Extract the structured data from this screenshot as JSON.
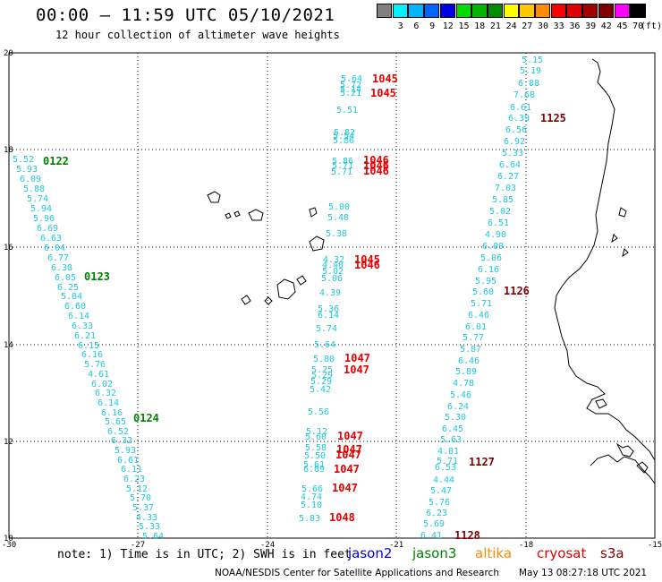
{
  "title": "00:00 – 11:59 UTC 05/10/2021",
  "subtitle": "12 hour collection of altimeter wave heights",
  "color_scale": {
    "unit_label": "(ft)",
    "items": [
      {
        "label": "",
        "color": "#808080"
      },
      {
        "label": "3",
        "color": "#00f0ff"
      },
      {
        "label": "6",
        "color": "#00b4ff"
      },
      {
        "label": "9",
        "color": "#0064ff"
      },
      {
        "label": "12",
        "color": "#0000e6"
      },
      {
        "label": "15",
        "color": "#00dc00"
      },
      {
        "label": "18",
        "color": "#00b400"
      },
      {
        "label": "21",
        "color": "#008c00"
      },
      {
        "label": "24",
        "color": "#ffff00"
      },
      {
        "label": "27",
        "color": "#ffc800"
      },
      {
        "label": "30",
        "color": "#ff8c00"
      },
      {
        "label": "33",
        "color": "#ff0000"
      },
      {
        "label": "36",
        "color": "#dc0000"
      },
      {
        "label": "39",
        "color": "#a00000"
      },
      {
        "label": "42",
        "color": "#800000"
      },
      {
        "label": "45",
        "color": "#ff00ff"
      },
      {
        "label": "70",
        "color": "#000000"
      }
    ]
  },
  "axes": {
    "lon_labels": [
      "-30",
      "-27",
      "-24",
      "-21",
      "-18",
      "-15"
    ],
    "lat_labels": [
      "20",
      "18",
      "16",
      "14",
      "12",
      "10"
    ]
  },
  "colors": {
    "wave_value": "#1ec8dc",
    "jason3": "#008000",
    "cryosat": "#e60000",
    "s3a": "#800000",
    "grid": "#000000",
    "coast": "#000000"
  },
  "tracks": [
    {
      "id": "track-0122",
      "time_labels": [
        {
          "text": "0122",
          "color": "jason3",
          "pos": [
            48,
            184
          ]
        },
        {
          "text": "0123",
          "color": "jason3",
          "pos": [
            94,
            313
          ]
        },
        {
          "text": "0124",
          "color": "jason3",
          "pos": [
            149,
            471
          ]
        }
      ],
      "values": [
        {
          "text": "5.52",
          "pos": [
            14,
            181
          ]
        },
        {
          "text": "5.93",
          "pos": [
            18,
            192
          ]
        },
        {
          "text": "6.09",
          "pos": [
            22,
            203
          ]
        },
        {
          "text": "5.88",
          "pos": [
            26,
            214
          ]
        },
        {
          "text": "5.74",
          "pos": [
            30,
            225
          ]
        },
        {
          "text": "5.94",
          "pos": [
            34,
            236
          ]
        },
        {
          "text": "5.96",
          "pos": [
            37,
            247
          ]
        },
        {
          "text": "6.69",
          "pos": [
            41,
            258
          ]
        },
        {
          "text": "6.63",
          "pos": [
            45,
            269
          ]
        },
        {
          "text": "6.04",
          "pos": [
            49,
            280
          ]
        },
        {
          "text": "6.77",
          "pos": [
            53,
            291
          ]
        },
        {
          "text": "6.38",
          "pos": [
            57,
            302
          ]
        },
        {
          "text": "6.05",
          "pos": [
            61,
            313
          ]
        },
        {
          "text": "6.25",
          "pos": [
            64,
            324
          ]
        },
        {
          "text": "5.84",
          "pos": [
            68,
            334
          ]
        },
        {
          "text": "6.60",
          "pos": [
            72,
            345
          ]
        },
        {
          "text": "6.14",
          "pos": [
            76,
            356
          ]
        },
        {
          "text": "6.33",
          "pos": [
            80,
            367
          ]
        },
        {
          "text": "6.21",
          "pos": [
            83,
            378
          ]
        },
        {
          "text": "6.15",
          "pos": [
            87,
            389
          ]
        },
        {
          "text": "6.16",
          "pos": [
            91,
            399
          ]
        },
        {
          "text": "5.76",
          "pos": [
            94,
            410
          ]
        },
        {
          "text": "4.61",
          "pos": [
            98,
            421
          ]
        },
        {
          "text": "6.02",
          "pos": [
            102,
            432
          ]
        },
        {
          "text": "6.32",
          "pos": [
            106,
            442
          ]
        },
        {
          "text": "6.14",
          "pos": [
            109,
            453
          ]
        },
        {
          "text": "6.16",
          "pos": [
            113,
            464
          ]
        },
        {
          "text": "5.65",
          "pos": [
            117,
            474
          ]
        },
        {
          "text": "6.52",
          "pos": [
            120,
            485
          ]
        },
        {
          "text": "6.32",
          "pos": [
            124,
            495
          ]
        },
        {
          "text": "5.93",
          "pos": [
            128,
            506
          ]
        },
        {
          "text": "6.61",
          "pos": [
            131,
            517
          ]
        },
        {
          "text": "6.11",
          "pos": [
            135,
            527
          ]
        },
        {
          "text": "6.23",
          "pos": [
            138,
            538
          ]
        },
        {
          "text": "5.12",
          "pos": [
            141,
            549
          ]
        },
        {
          "text": "5.70",
          "pos": [
            145,
            559
          ]
        },
        {
          "text": "5.37",
          "pos": [
            148,
            570
          ]
        },
        {
          "text": "4.33",
          "pos": [
            152,
            581
          ]
        },
        {
          "text": "5.33",
          "pos": [
            155,
            591
          ]
        },
        {
          "text": "5.64",
          "pos": [
            159,
            602
          ]
        }
      ]
    },
    {
      "id": "track-cryosat",
      "time_labels": [
        {
          "text": "1045",
          "color": "cryosat",
          "pos": [
            416,
            92
          ]
        },
        {
          "text": "1045",
          "color": "cryosat",
          "pos": [
            414,
            108
          ]
        },
        {
          "text": "1046",
          "color": "cryosat",
          "pos": [
            406,
            183
          ]
        },
        {
          "text": "1046",
          "color": "cryosat",
          "pos": [
            406,
            189
          ]
        },
        {
          "text": "1046",
          "color": "cryosat",
          "pos": [
            406,
            195
          ]
        },
        {
          "text": "1045",
          "color": "cryosat",
          "pos": [
            396,
            294
          ]
        },
        {
          "text": "1046",
          "color": "cryosat",
          "pos": [
            396,
            300
          ]
        },
        {
          "text": "1047",
          "color": "cryosat",
          "pos": [
            385,
            404
          ]
        },
        {
          "text": "1047",
          "color": "cryosat",
          "pos": [
            384,
            417
          ]
        },
        {
          "text": "1047",
          "color": "cryosat",
          "pos": [
            377,
            491
          ]
        },
        {
          "text": "1047",
          "color": "cryosat",
          "pos": [
            376,
            506
          ]
        },
        {
          "text": "1047",
          "color": "cryosat",
          "pos": [
            375,
            512
          ]
        },
        {
          "text": "1047",
          "color": "cryosat",
          "pos": [
            373,
            528
          ]
        },
        {
          "text": "1047",
          "color": "cryosat",
          "pos": [
            371,
            549
          ]
        },
        {
          "text": "1048",
          "color": "cryosat",
          "pos": [
            368,
            582
          ]
        }
      ],
      "values": [
        {
          "text": "5.64",
          "pos": [
            381,
            91
          ]
        },
        {
          "text": "5.72",
          "pos": [
            380,
            98
          ]
        },
        {
          "text": "5.14",
          "pos": [
            380,
            103
          ]
        },
        {
          "text": "5.21",
          "pos": [
            380,
            107
          ]
        },
        {
          "text": "5.51",
          "pos": [
            376,
            126
          ]
        },
        {
          "text": "5.82",
          "pos": [
            373,
            151
          ]
        },
        {
          "text": "5.54",
          "pos": [
            372,
            155
          ]
        },
        {
          "text": "5.86",
          "pos": [
            372,
            160
          ]
        },
        {
          "text": "5.86",
          "pos": [
            371,
            183
          ]
        },
        {
          "text": "5.71",
          "pos": [
            371,
            188
          ]
        },
        {
          "text": "5.71",
          "pos": [
            370,
            195
          ]
        },
        {
          "text": "5.00",
          "pos": [
            367,
            234
          ]
        },
        {
          "text": "5.48",
          "pos": [
            366,
            246
          ]
        },
        {
          "text": "5.38",
          "pos": [
            364,
            264
          ]
        },
        {
          "text": "4.32",
          "pos": [
            361,
            293
          ]
        },
        {
          "text": "4.40",
          "pos": [
            360,
            299
          ]
        },
        {
          "text": "5.02",
          "pos": [
            360,
            306
          ]
        },
        {
          "text": "5.06",
          "pos": [
            359,
            314
          ]
        },
        {
          "text": "4.39",
          "pos": [
            357,
            330
          ]
        },
        {
          "text": "5.36",
          "pos": [
            355,
            348
          ]
        },
        {
          "text": "6.14",
          "pos": [
            355,
            355
          ]
        },
        {
          "text": "5.74",
          "pos": [
            353,
            370
          ]
        },
        {
          "text": "5.64",
          "pos": [
            351,
            388
          ]
        },
        {
          "text": "5.80",
          "pos": [
            350,
            404
          ]
        },
        {
          "text": "5.25",
          "pos": [
            348,
            416
          ]
        },
        {
          "text": "5.29",
          "pos": [
            348,
            422
          ]
        },
        {
          "text": "5.29",
          "pos": [
            347,
            429
          ]
        },
        {
          "text": "5.42",
          "pos": [
            346,
            438
          ]
        },
        {
          "text": "5.56",
          "pos": [
            344,
            463
          ]
        },
        {
          "text": "5.12",
          "pos": [
            342,
            485
          ]
        },
        {
          "text": "5.60",
          "pos": [
            341,
            491
          ]
        },
        {
          "text": "5.58",
          "pos": [
            341,
            503
          ]
        },
        {
          "text": "5.50",
          "pos": [
            340,
            512
          ]
        },
        {
          "text": "5.61",
          "pos": [
            339,
            522
          ]
        },
        {
          "text": "6.09",
          "pos": [
            339,
            527
          ]
        },
        {
          "text": "5.66",
          "pos": [
            337,
            549
          ]
        },
        {
          "text": "4.74",
          "pos": [
            336,
            558
          ]
        },
        {
          "text": "5.10",
          "pos": [
            336,
            567
          ]
        },
        {
          "text": "5.83",
          "pos": [
            334,
            582
          ]
        }
      ]
    },
    {
      "id": "track-s3a",
      "time_labels": [
        {
          "text": "1125",
          "color": "s3a",
          "pos": [
            604,
            136
          ]
        },
        {
          "text": "1126",
          "color": "s3a",
          "pos": [
            563,
            329
          ]
        },
        {
          "text": "1127",
          "color": "s3a",
          "pos": [
            524,
            520
          ]
        },
        {
          "text": "1128",
          "color": "s3a",
          "pos": [
            508,
            602
          ]
        }
      ],
      "values": [
        {
          "text": "5.15",
          "pos": [
            583,
            70
          ]
        },
        {
          "text": "5.19",
          "pos": [
            581,
            82
          ]
        },
        {
          "text": "6.88",
          "pos": [
            579,
            96
          ]
        },
        {
          "text": "7.68",
          "pos": [
            574,
            109
          ]
        },
        {
          "text": "6.61",
          "pos": [
            570,
            123
          ]
        },
        {
          "text": "6.39",
          "pos": [
            568,
            135
          ]
        },
        {
          "text": "6.56",
          "pos": [
            565,
            148
          ]
        },
        {
          "text": "6.92",
          "pos": [
            563,
            161
          ]
        },
        {
          "text": "5.33",
          "pos": [
            561,
            174
          ]
        },
        {
          "text": "6.64",
          "pos": [
            558,
            187
          ]
        },
        {
          "text": "6.27",
          "pos": [
            556,
            200
          ]
        },
        {
          "text": "7.03",
          "pos": [
            553,
            213
          ]
        },
        {
          "text": "5.85",
          "pos": [
            550,
            226
          ]
        },
        {
          "text": "5.02",
          "pos": [
            547,
            239
          ]
        },
        {
          "text": "6.51",
          "pos": [
            545,
            252
          ]
        },
        {
          "text": "4.90",
          "pos": [
            542,
            265
          ]
        },
        {
          "text": "6.09",
          "pos": [
            539,
            278
          ]
        },
        {
          "text": "5.86",
          "pos": [
            537,
            291
          ]
        },
        {
          "text": "6.16",
          "pos": [
            534,
            304
          ]
        },
        {
          "text": "5.95",
          "pos": [
            531,
            317
          ]
        },
        {
          "text": "5.60",
          "pos": [
            528,
            329
          ]
        },
        {
          "text": "5.71",
          "pos": [
            526,
            342
          ]
        },
        {
          "text": "6.46",
          "pos": [
            523,
            355
          ]
        },
        {
          "text": "6.01",
          "pos": [
            520,
            368
          ]
        },
        {
          "text": "5.77",
          "pos": [
            517,
            380
          ]
        },
        {
          "text": "5.87",
          "pos": [
            514,
            393
          ]
        },
        {
          "text": "6.46",
          "pos": [
            512,
            406
          ]
        },
        {
          "text": "5.89",
          "pos": [
            509,
            418
          ]
        },
        {
          "text": "4.78",
          "pos": [
            506,
            431
          ]
        },
        {
          "text": "5.46",
          "pos": [
            503,
            444
          ]
        },
        {
          "text": "6.24",
          "pos": [
            500,
            457
          ]
        },
        {
          "text": "5.30",
          "pos": [
            497,
            469
          ]
        },
        {
          "text": "6.45",
          "pos": [
            494,
            482
          ]
        },
        {
          "text": "5.63",
          "pos": [
            492,
            494
          ]
        },
        {
          "text": "4.81",
          "pos": [
            489,
            507
          ]
        },
        {
          "text": "5.71",
          "pos": [
            488,
            518
          ]
        },
        {
          "text": "6.53",
          "pos": [
            486,
            525
          ]
        },
        {
          "text": "4.44",
          "pos": [
            484,
            539
          ]
        },
        {
          "text": "5.47",
          "pos": [
            481,
            551
          ]
        },
        {
          "text": "5.76",
          "pos": [
            479,
            564
          ]
        },
        {
          "text": "6.23",
          "pos": [
            476,
            576
          ]
        },
        {
          "text": "5.69",
          "pos": [
            473,
            588
          ]
        },
        {
          "text": "6.41",
          "pos": [
            470,
            601
          ]
        }
      ]
    }
  ],
  "note": "note: 1) Time is in UTC; 2) SWH is in feet",
  "legend": [
    {
      "name": "jason2",
      "color": "#0000e6"
    },
    {
      "name": "jason3",
      "color": "#008000"
    },
    {
      "name": "altika",
      "color": "#ff8c00"
    },
    {
      "name": "cryosat",
      "color": "#e60000"
    },
    {
      "name": "s3a",
      "color": "#800000"
    }
  ],
  "footer": {
    "org": "NOAA/NESDIS Center for Satellite Applications and Research",
    "generated": "May 13 08:27:18 UTC 2021"
  }
}
